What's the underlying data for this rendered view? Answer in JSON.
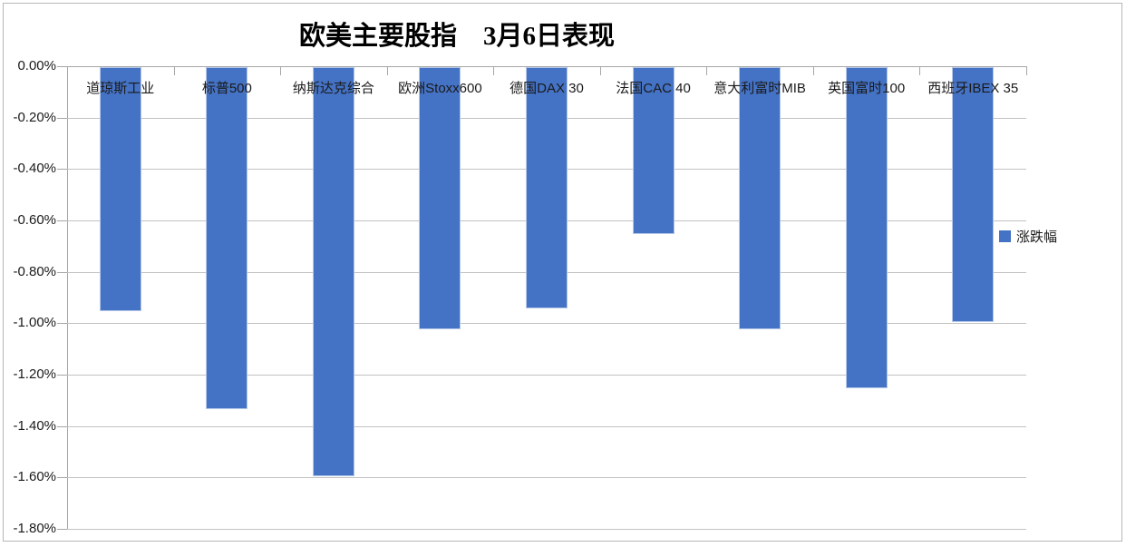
{
  "chart_data": {
    "type": "bar",
    "title": "欧美主要股指　3月6日表现",
    "categories": [
      "道琼斯工业",
      "标普500",
      "纳斯达克综合",
      "欧洲Stoxx600",
      "德国DAX 30",
      "法国CAC 40",
      "意大利富时MIB",
      "英国富时100",
      "西班牙IBEX 35"
    ],
    "series": [
      {
        "name": "涨跌幅",
        "values": [
          -0.95,
          -1.33,
          -1.59,
          -1.02,
          -0.94,
          -0.65,
          -1.02,
          -1.25,
          -0.99
        ]
      }
    ],
    "value_unit": "%",
    "ylim": [
      -1.8,
      0.0
    ],
    "ytick_step": 0.2,
    "ytick_labels": [
      "0.00%",
      "-0.20%",
      "-0.40%",
      "-0.60%",
      "-0.80%",
      "-1.00%",
      "-1.20%",
      "-1.40%",
      "-1.60%",
      "-1.80%"
    ],
    "grid": true,
    "legend_position": "right",
    "category_labels_position": "top-inside",
    "colors": {
      "bar": "#4472C4",
      "gridline": "#C2C2C2",
      "axis": "#A6A6A6",
      "text": "#1A1A1A",
      "title_text": "#000000",
      "background": "#FFFFFF"
    }
  }
}
